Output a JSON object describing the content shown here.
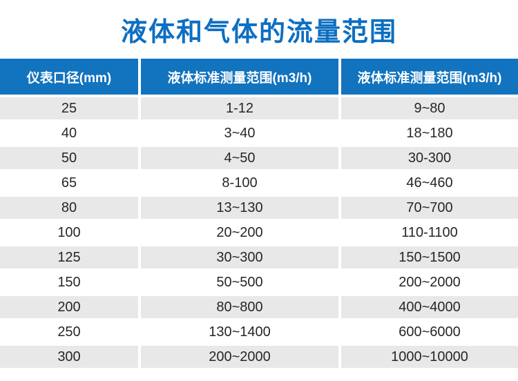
{
  "page": {
    "title": "液体和气体的流量范围"
  },
  "chart_data": {
    "type": "table",
    "title": "液体和气体的流量范围",
    "columns": [
      "仪表口径(mm)",
      "液体标准测量范围(m3/h)",
      "液体标准测量范围(m3/h)"
    ],
    "rows": [
      [
        "25",
        "1-12",
        "9~80"
      ],
      [
        "40",
        "3~40",
        "18~180"
      ],
      [
        "50",
        "4~50",
        "30-300"
      ],
      [
        "65",
        "8-100",
        "46~460"
      ],
      [
        "80",
        "13~130",
        "70~700"
      ],
      [
        "100",
        "20~200",
        "110-1100"
      ],
      [
        "125",
        "30~300",
        "150~1500"
      ],
      [
        "150",
        "50~500",
        "200~2000"
      ],
      [
        "200",
        "80~800",
        "400~4000"
      ],
      [
        "250",
        "130~1400",
        "600~6000"
      ],
      [
        "300",
        "200~2000",
        "1000~10000"
      ]
    ],
    "layout": {
      "striping": "odd-rows-gray",
      "header_position": "top",
      "column_alignment": [
        "center",
        "center",
        "center"
      ]
    }
  },
  "colors": {
    "title_text": "#0d6fc1",
    "header_bg": "#1273be",
    "header_text": "#ffffff",
    "row_alt_bg": "#e8e8e8",
    "row_bg": "#ffffff",
    "cell_text": "#262626"
  }
}
